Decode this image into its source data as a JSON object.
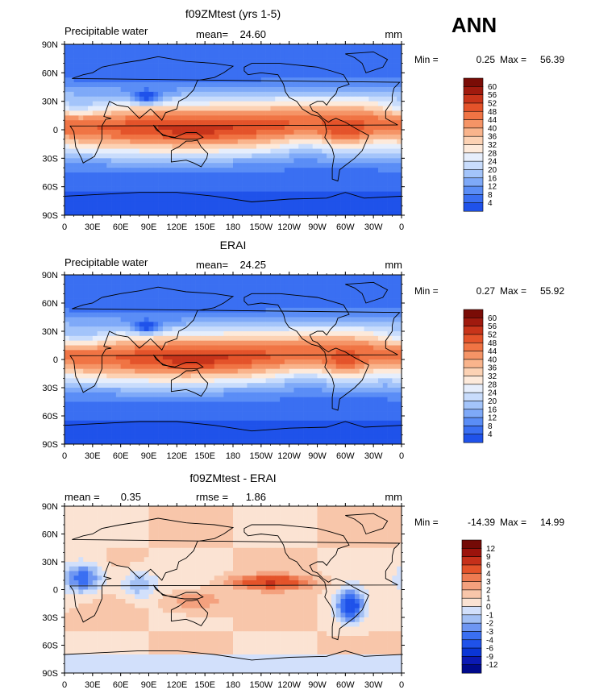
{
  "season": "ANN",
  "colors": {
    "abs": [
      "#000a8c",
      "#0b1ab4",
      "#0a36d6",
      "#1f52ea",
      "#3a6ff2",
      "#5a8df6",
      "#7ea9f8",
      "#a3c4fa",
      "#c8dcfc",
      "#e6eefc",
      "#fdeadb",
      "#fcd2b4",
      "#f9b48c",
      "#f59466",
      "#f07444",
      "#e4532a",
      "#c8341a",
      "#a01a0e",
      "#7a0c06"
    ],
    "diff": [
      "#000a8c",
      "#0b1ab4",
      "#0a36d6",
      "#1f52ea",
      "#3a6ff2",
      "#6e96f2",
      "#a3c0f4",
      "#d2e0fb",
      "#fbe3d3",
      "#f8c6aa",
      "#f4a17e",
      "#ee7b52",
      "#e4532a",
      "#c6301a",
      "#9c130c",
      "#740a06"
    ],
    "land": "#000000"
  },
  "map_axes": {
    "lat_ticks": [
      "90N",
      "60N",
      "30N",
      "0",
      "30S",
      "60S",
      "90S"
    ],
    "lon_ticks": [
      "0",
      "30E",
      "60E",
      "90E",
      "120E",
      "150E",
      "180",
      "150W",
      "120W",
      "90W",
      "60W",
      "30W",
      "0"
    ]
  },
  "chart_data": [
    {
      "type": "heatmap",
      "title": "f09ZMtest (yrs 1-5)",
      "variable": "Precipitable water",
      "units": "mm",
      "mean_label": "mean=",
      "mean": "24.60",
      "min_label": "Min =",
      "min": "0.25",
      "max_label": "Max =",
      "max": "56.39",
      "levels": [
        "4",
        "8",
        "12",
        "16",
        "20",
        "24",
        "28",
        "32",
        "36",
        "40",
        "44",
        "48",
        "52",
        "56",
        "60"
      ],
      "palette": "abs",
      "pattern": {
        "trop_peak": 56,
        "pole_val": 4,
        "west_pacific_boost": 6,
        "south_pole_low": 3
      }
    },
    {
      "type": "heatmap",
      "title": "ERAI",
      "variable": "Precipitable water",
      "units": "mm",
      "mean_label": "mean=",
      "mean": "24.25",
      "min_label": "Min =",
      "min": "0.27",
      "max_label": "Max =",
      "max": "55.92",
      "levels": [
        "4",
        "8",
        "12",
        "16",
        "20",
        "24",
        "28",
        "32",
        "36",
        "40",
        "44",
        "48",
        "52",
        "56",
        "60"
      ],
      "palette": "abs",
      "pattern": {
        "trop_peak": 55,
        "pole_val": 4,
        "west_pacific_boost": 7,
        "south_pole_low": 3
      }
    },
    {
      "type": "heatmap",
      "title": "f09ZMtest - ERAI",
      "variable": "",
      "units": "mm",
      "mean_label": "mean =",
      "mean": "0.35",
      "rmse_label": "rmse =",
      "rmse": "1.86",
      "min_label": "Min =",
      "min": "-14.39",
      "max_label": "Max =",
      "max": "14.99",
      "levels": [
        "-12",
        "-9",
        "-6",
        "-4",
        "-3",
        "-2",
        "-1",
        "0",
        "1",
        "2",
        "3",
        "4",
        "6",
        "9",
        "12"
      ],
      "palette": "diff"
    }
  ]
}
